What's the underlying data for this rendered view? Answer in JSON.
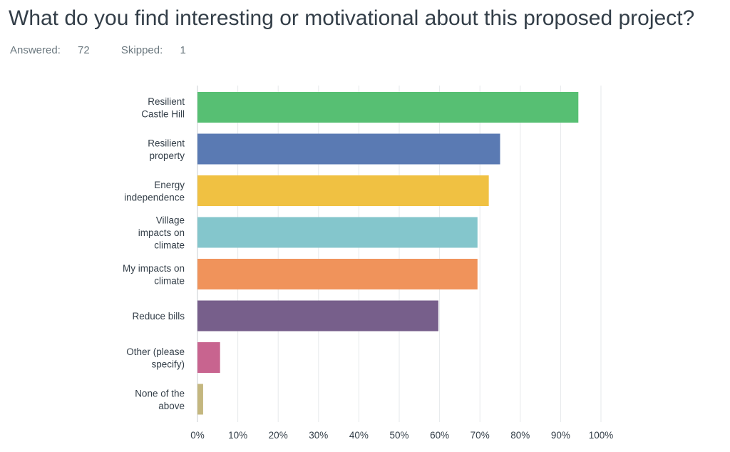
{
  "title": "What do you find interesting or motivational about this proposed project?",
  "summary": {
    "answered_label": "Answered:",
    "answered": "72",
    "skipped_label": "Skipped:",
    "skipped": "1"
  },
  "chart_data": {
    "type": "bar",
    "orientation": "horizontal",
    "categories": [
      [
        "Resilient",
        "Castle Hill"
      ],
      [
        "Resilient",
        "property"
      ],
      [
        "Energy",
        "independence"
      ],
      [
        "Village",
        "impacts on",
        "climate"
      ],
      [
        "My impacts on",
        "climate"
      ],
      [
        "Reduce bills"
      ],
      [
        "Other (please",
        "specify)"
      ],
      [
        "None of the",
        "above"
      ]
    ],
    "values": [
      94.4,
      75.0,
      72.2,
      69.4,
      69.4,
      59.7,
      5.6,
      1.4
    ],
    "unit": "%",
    "xlim": [
      0,
      100
    ],
    "ticks": [
      "0%",
      "10%",
      "20%",
      "30%",
      "40%",
      "50%",
      "60%",
      "70%",
      "80%",
      "90%",
      "100%"
    ],
    "grid": true,
    "legend": "none",
    "colors": [
      "#57bf73",
      "#5a7ab3",
      "#f0c142",
      "#84c6cc",
      "#f0935b",
      "#775f8b",
      "#c8648f",
      "#c4b77f"
    ]
  }
}
